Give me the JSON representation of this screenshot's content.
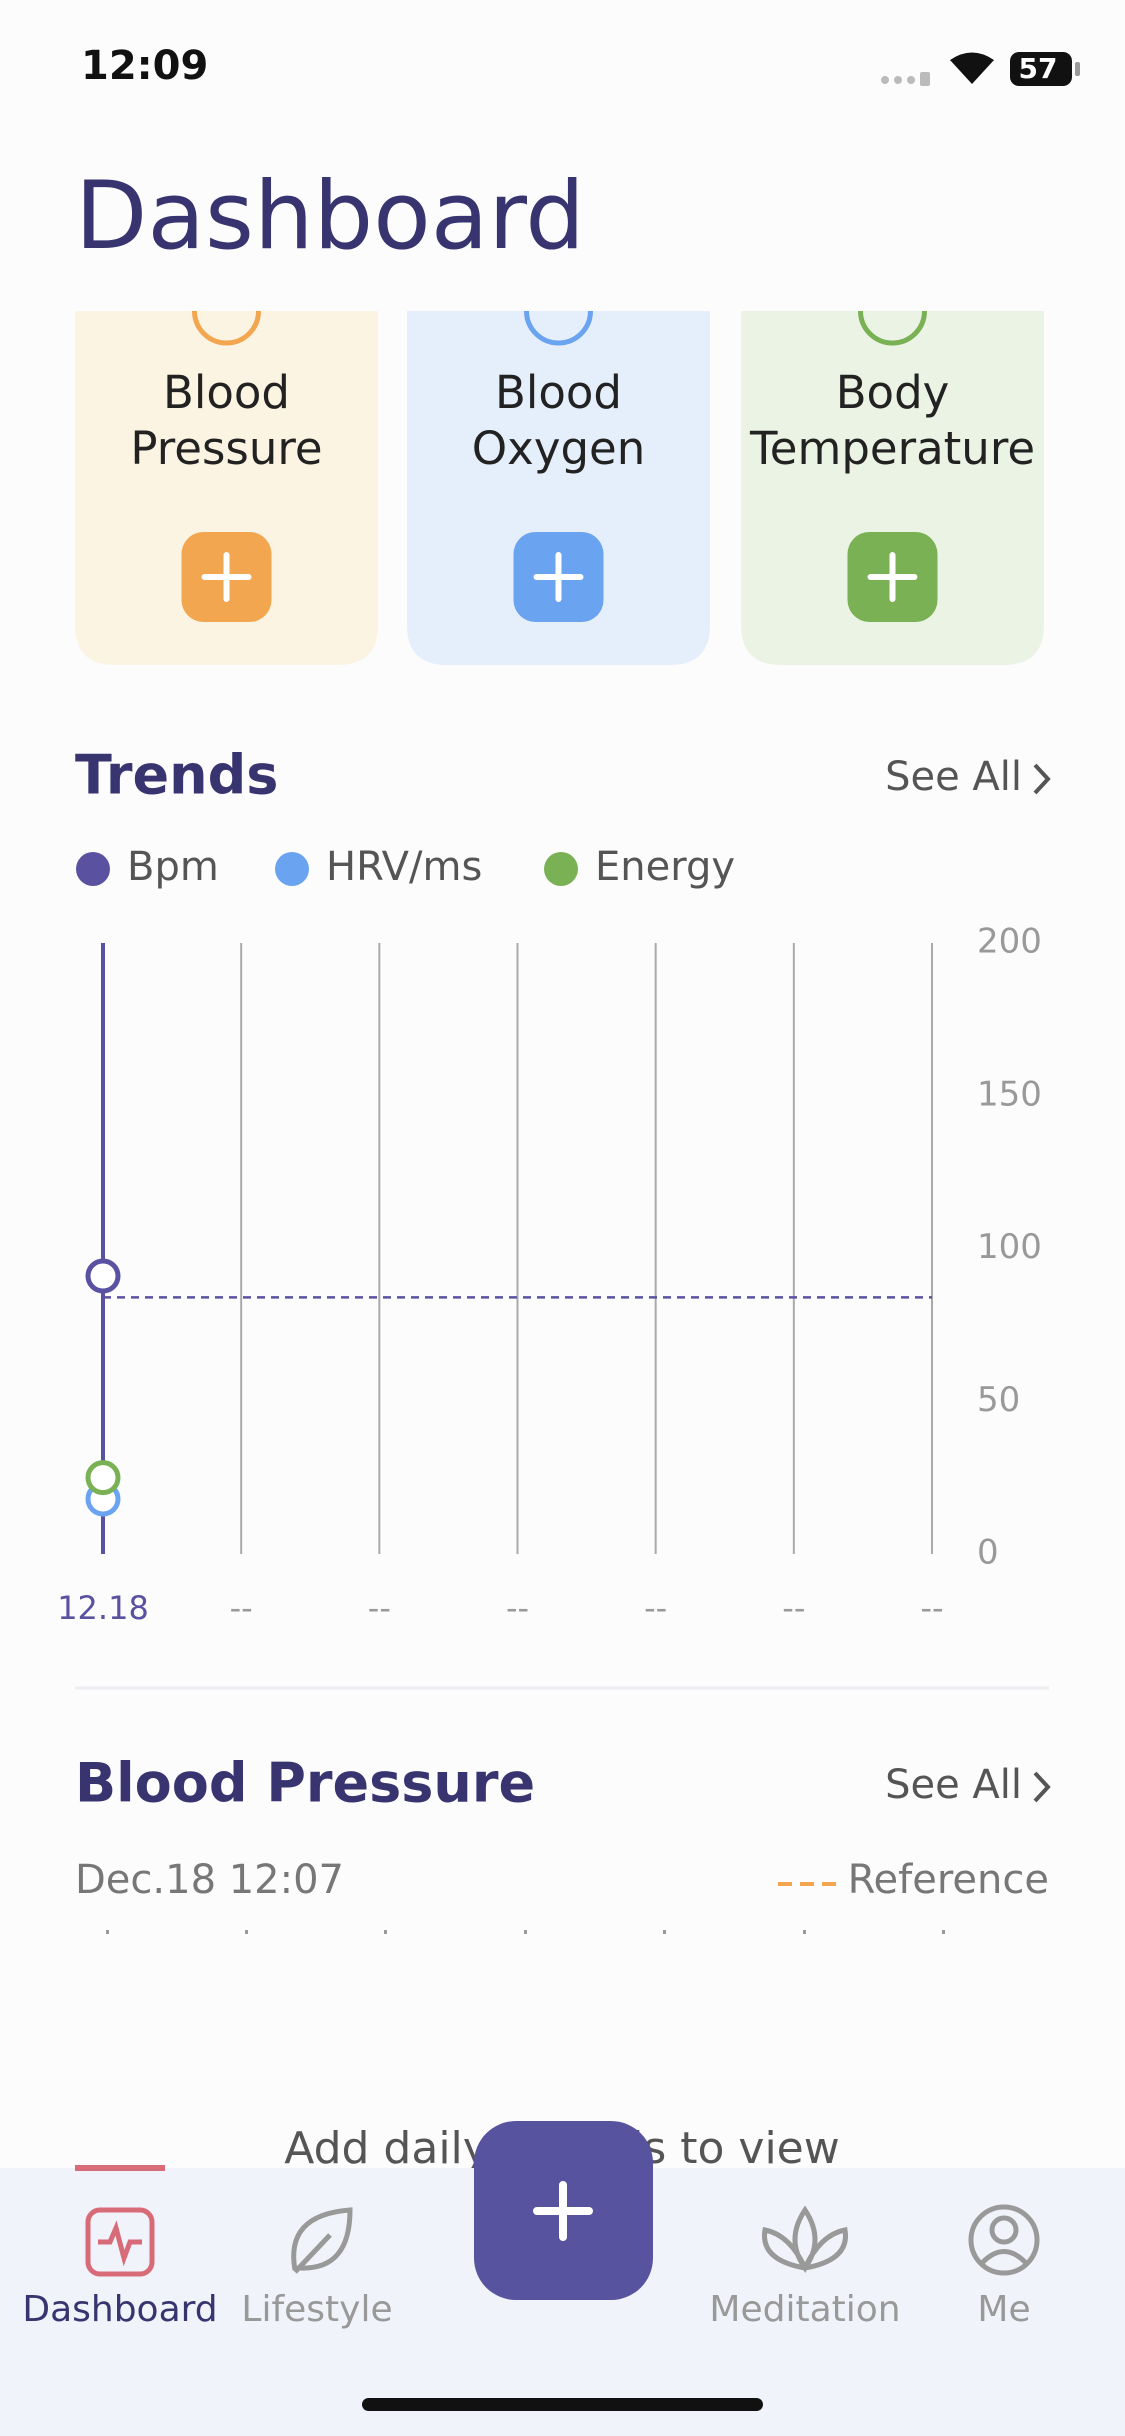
{
  "status_bar": {
    "time": "12:09",
    "battery": "57"
  },
  "header": {
    "title": "Dashboard"
  },
  "cards": [
    {
      "lines": [
        "Blood",
        "Pressure"
      ]
    },
    {
      "lines": [
        "Blood",
        "Oxygen"
      ]
    },
    {
      "lines": [
        "Body",
        "Temperature"
      ]
    }
  ],
  "trends": {
    "title": "Trends",
    "see_all": "See All",
    "chart_data": {
      "type": "line",
      "categories": [
        "12.18",
        "--",
        "--",
        "--",
        "--",
        "--",
        "--"
      ],
      "series": [
        {
          "name": "Bpm",
          "color": "#5a52a0",
          "values": [
            91,
            null,
            null,
            null,
            null,
            null,
            null
          ]
        },
        {
          "name": "HRV/ms",
          "color": "#6aa3f0",
          "values": [
            18,
            null,
            null,
            null,
            null,
            null,
            null
          ]
        },
        {
          "name": "Energy",
          "color": "#79b154",
          "values": [
            25,
            null,
            null,
            null,
            null,
            null,
            null
          ]
        }
      ],
      "guide": 84,
      "ylim": [
        0,
        200
      ],
      "yticks": [
        0,
        50,
        100,
        150,
        200
      ]
    }
  },
  "blood_pressure": {
    "title": "Blood Pressure",
    "see_all": "See All",
    "date": "Dec.18 12:07",
    "reference": "Reference",
    "empty": "Add daily records to view"
  },
  "tabs": [
    "Dashboard",
    "Lifestyle",
    "Meditation",
    "Me"
  ]
}
